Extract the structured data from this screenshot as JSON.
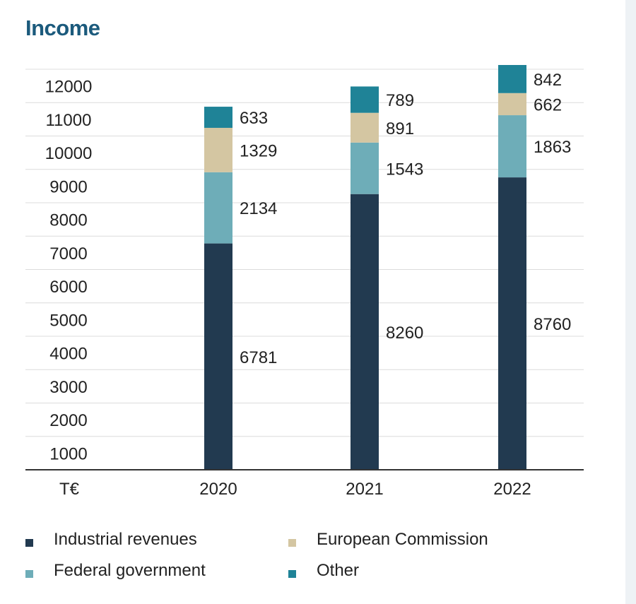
{
  "chart_data": {
    "type": "bar",
    "stacked": true,
    "title": "Income",
    "xlabel": "",
    "ylabel": "T€",
    "categories": [
      "2020",
      "2021",
      "2022"
    ],
    "series": [
      {
        "name": "Industrial revenues",
        "color": "#223a50",
        "values": [
          6781,
          8260,
          8760
        ]
      },
      {
        "name": "Federal government",
        "color": "#6eadb8",
        "values": [
          2134,
          1543,
          1863
        ]
      },
      {
        "name": "European Commission",
        "color": "#d4c6a2",
        "values": [
          1329,
          891,
          662
        ]
      },
      {
        "name": "Other",
        "color": "#1f8397",
        "values": [
          633,
          789,
          842
        ]
      }
    ],
    "yticks": [
      1000,
      2000,
      3000,
      4000,
      5000,
      6000,
      7000,
      8000,
      9000,
      10000,
      11000,
      12000
    ],
    "ylim": [
      0,
      12000
    ],
    "grid": true,
    "legend_position": "bottom"
  }
}
